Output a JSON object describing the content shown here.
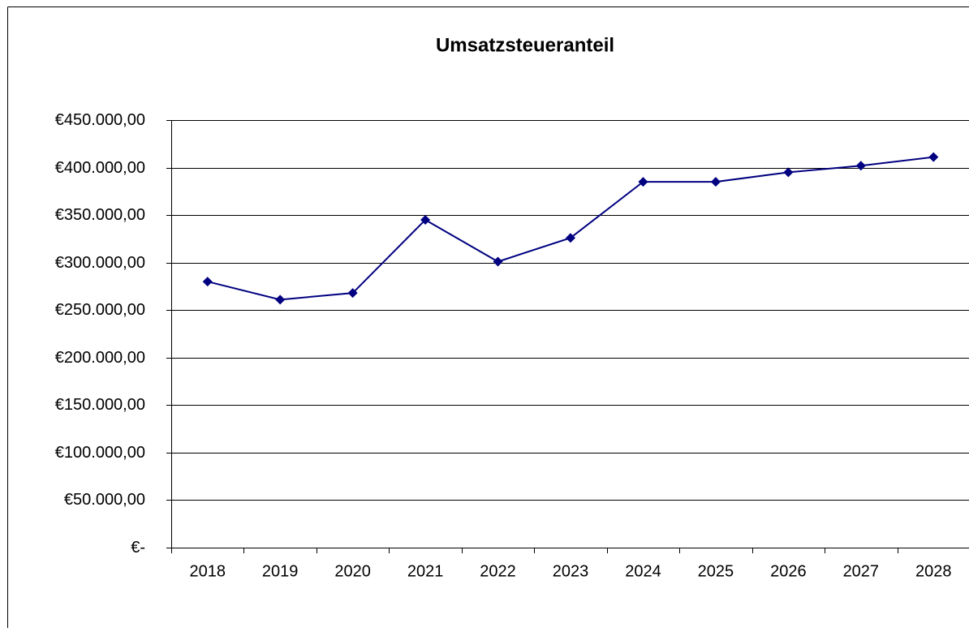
{
  "chart_data": {
    "type": "line",
    "title": "Umsatzsteueranteil",
    "categories": [
      "2018",
      "2019",
      "2020",
      "2021",
      "2022",
      "2023",
      "2024",
      "2025",
      "2026",
      "2027",
      "2028"
    ],
    "series": [
      {
        "name": "Umsatzsteueranteil",
        "color": "#000080",
        "values": [
          280000,
          261000,
          268000,
          345000,
          301000,
          326000,
          385000,
          385000,
          395000,
          402000,
          411000
        ]
      }
    ],
    "ylim": [
      0,
      450000
    ],
    "yticks": [
      {
        "value": 0,
        "label": "€-"
      },
      {
        "value": 50000,
        "label": "€50.000,00"
      },
      {
        "value": 100000,
        "label": "€100.000,00"
      },
      {
        "value": 150000,
        "label": "€150.000,00"
      },
      {
        "value": 200000,
        "label": "€200.000,00"
      },
      {
        "value": 250000,
        "label": "€250.000,00"
      },
      {
        "value": 300000,
        "label": "€300.000,00"
      },
      {
        "value": 350000,
        "label": "€350.000,00"
      },
      {
        "value": 400000,
        "label": "€400.000,00"
      },
      {
        "value": 450000,
        "label": "€450.000,00"
      }
    ],
    "grid": true
  }
}
